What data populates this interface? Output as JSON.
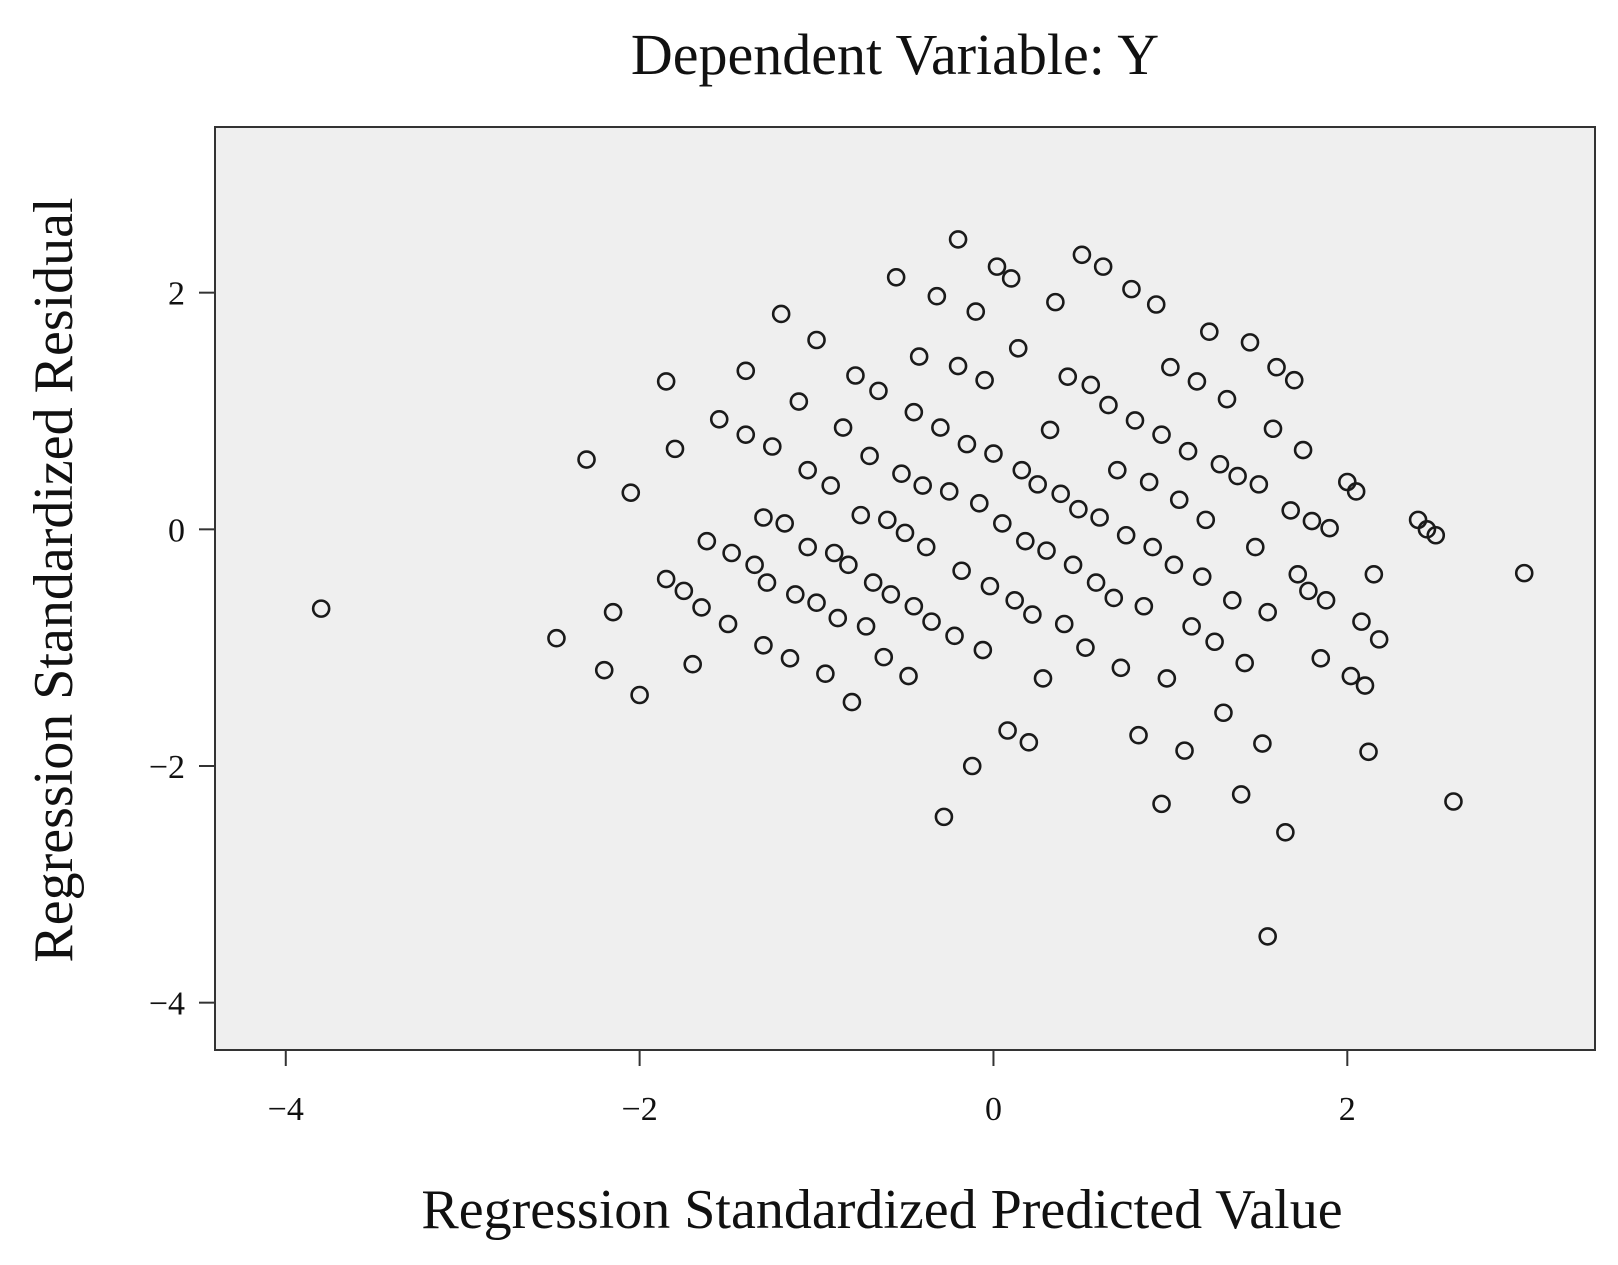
{
  "chart_data": {
    "type": "scatter",
    "title": "Dependent Variable: Y",
    "xlabel": "Regression Standardized Predicted Value",
    "ylabel": "Regression Standardized Residual",
    "xlim": [
      -4.4,
      3.4
    ],
    "ylim": [
      -4.4,
      3.4
    ],
    "xticks": [
      -4,
      -2,
      0,
      2
    ],
    "yticks": [
      2,
      0,
      -2,
      -4
    ],
    "xtick_labels": [
      "−4",
      "−2",
      "0",
      "2"
    ],
    "ytick_labels": [
      "2",
      "0",
      "−2",
      "−4"
    ],
    "grid": false,
    "legend": null,
    "colors": {
      "plot_background": "#efefef",
      "marker_stroke": "#1a1a1a",
      "frame": "#333333"
    },
    "points": [
      {
        "x": -3.8,
        "y": -0.67
      },
      {
        "x": -2.47,
        "y": -0.92
      },
      {
        "x": -2.3,
        "y": 0.59
      },
      {
        "x": -2.2,
        "y": -1.19
      },
      {
        "x": -2.15,
        "y": -0.7
      },
      {
        "x": -2.05,
        "y": 0.31
      },
      {
        "x": -2.0,
        "y": -1.4
      },
      {
        "x": -1.85,
        "y": 1.25
      },
      {
        "x": -1.85,
        "y": -0.42
      },
      {
        "x": -1.8,
        "y": 0.68
      },
      {
        "x": -1.75,
        "y": -0.52
      },
      {
        "x": -1.7,
        "y": -1.14
      },
      {
        "x": -1.65,
        "y": -0.66
      },
      {
        "x": -1.62,
        "y": -0.1
      },
      {
        "x": -1.55,
        "y": 0.93
      },
      {
        "x": -1.5,
        "y": -0.8
      },
      {
        "x": -1.48,
        "y": -0.2
      },
      {
        "x": -1.4,
        "y": 1.34
      },
      {
        "x": -1.4,
        "y": 0.8
      },
      {
        "x": -1.35,
        "y": -0.3
      },
      {
        "x": -1.3,
        "y": -0.98
      },
      {
        "x": -1.3,
        "y": 0.1
      },
      {
        "x": -1.28,
        "y": -0.45
      },
      {
        "x": -1.25,
        "y": 0.7
      },
      {
        "x": -1.2,
        "y": 1.82
      },
      {
        "x": -1.18,
        "y": 0.05
      },
      {
        "x": -1.15,
        "y": -1.09
      },
      {
        "x": -1.12,
        "y": -0.55
      },
      {
        "x": -1.1,
        "y": 1.08
      },
      {
        "x": -1.05,
        "y": 0.5
      },
      {
        "x": -1.05,
        "y": -0.15
      },
      {
        "x": -1.0,
        "y": 1.6
      },
      {
        "x": -1.0,
        "y": -0.62
      },
      {
        "x": -0.95,
        "y": -1.22
      },
      {
        "x": -0.92,
        "y": 0.37
      },
      {
        "x": -0.9,
        "y": -0.2
      },
      {
        "x": -0.88,
        "y": -0.75
      },
      {
        "x": -0.85,
        "y": 0.86
      },
      {
        "x": -0.82,
        "y": -0.3
      },
      {
        "x": -0.8,
        "y": -1.46
      },
      {
        "x": -0.78,
        "y": 1.3
      },
      {
        "x": -0.75,
        "y": 0.12
      },
      {
        "x": -0.72,
        "y": -0.82
      },
      {
        "x": -0.7,
        "y": 0.62
      },
      {
        "x": -0.68,
        "y": -0.45
      },
      {
        "x": -0.65,
        "y": 1.17
      },
      {
        "x": -0.62,
        "y": -1.08
      },
      {
        "x": -0.6,
        "y": 0.08
      },
      {
        "x": -0.58,
        "y": -0.55
      },
      {
        "x": -0.55,
        "y": 2.13
      },
      {
        "x": -0.52,
        "y": 0.47
      },
      {
        "x": -0.5,
        "y": -0.03
      },
      {
        "x": -0.48,
        "y": -1.24
      },
      {
        "x": -0.45,
        "y": -0.65
      },
      {
        "x": -0.45,
        "y": 0.99
      },
      {
        "x": -0.42,
        "y": 1.46
      },
      {
        "x": -0.4,
        "y": 0.37
      },
      {
        "x": -0.38,
        "y": -0.15
      },
      {
        "x": -0.35,
        "y": -0.78
      },
      {
        "x": -0.32,
        "y": 1.97
      },
      {
        "x": -0.3,
        "y": 0.86
      },
      {
        "x": -0.28,
        "y": -2.43
      },
      {
        "x": -0.25,
        "y": 0.32
      },
      {
        "x": -0.22,
        "y": -0.9
      },
      {
        "x": -0.2,
        "y": 2.45
      },
      {
        "x": -0.2,
        "y": 1.38
      },
      {
        "x": -0.18,
        "y": -0.35
      },
      {
        "x": -0.15,
        "y": 0.72
      },
      {
        "x": -0.12,
        "y": -2.0
      },
      {
        "x": -0.1,
        "y": 1.84
      },
      {
        "x": -0.08,
        "y": 0.22
      },
      {
        "x": -0.06,
        "y": -1.02
      },
      {
        "x": -0.05,
        "y": 1.26
      },
      {
        "x": -0.02,
        "y": -0.48
      },
      {
        "x": 0.0,
        "y": 0.64
      },
      {
        "x": 0.02,
        "y": 2.22
      },
      {
        "x": 0.05,
        "y": 0.05
      },
      {
        "x": 0.08,
        "y": -1.7
      },
      {
        "x": 0.1,
        "y": 2.12
      },
      {
        "x": 0.12,
        "y": -0.6
      },
      {
        "x": 0.14,
        "y": 1.53
      },
      {
        "x": 0.16,
        "y": 0.5
      },
      {
        "x": 0.18,
        "y": -0.1
      },
      {
        "x": 0.2,
        "y": -1.8
      },
      {
        "x": 0.22,
        "y": -0.72
      },
      {
        "x": 0.25,
        "y": 0.38
      },
      {
        "x": 0.28,
        "y": -1.26
      },
      {
        "x": 0.3,
        "y": -0.18
      },
      {
        "x": 0.32,
        "y": 0.84
      },
      {
        "x": 0.35,
        "y": 1.92
      },
      {
        "x": 0.38,
        "y": 0.3
      },
      {
        "x": 0.4,
        "y": -0.8
      },
      {
        "x": 0.42,
        "y": 1.29
      },
      {
        "x": 0.45,
        "y": -0.3
      },
      {
        "x": 0.48,
        "y": 0.17
      },
      {
        "x": 0.5,
        "y": 2.32
      },
      {
        "x": 0.52,
        "y": -1.0
      },
      {
        "x": 0.55,
        "y": 1.22
      },
      {
        "x": 0.58,
        "y": -0.45
      },
      {
        "x": 0.6,
        "y": 0.1
      },
      {
        "x": 0.62,
        "y": 2.22
      },
      {
        "x": 0.65,
        "y": 1.05
      },
      {
        "x": 0.68,
        "y": -0.58
      },
      {
        "x": 0.7,
        "y": 0.5
      },
      {
        "x": 0.72,
        "y": -1.17
      },
      {
        "x": 0.75,
        "y": -0.05
      },
      {
        "x": 0.78,
        "y": 2.03
      },
      {
        "x": 0.8,
        "y": 0.92
      },
      {
        "x": 0.82,
        "y": -1.74
      },
      {
        "x": 0.85,
        "y": -0.65
      },
      {
        "x": 0.88,
        "y": 0.4
      },
      {
        "x": 0.9,
        "y": -0.15
      },
      {
        "x": 0.92,
        "y": 1.9
      },
      {
        "x": 0.95,
        "y": -2.32
      },
      {
        "x": 0.95,
        "y": 0.8
      },
      {
        "x": 0.98,
        "y": -1.26
      },
      {
        "x": 1.0,
        "y": 1.37
      },
      {
        "x": 1.02,
        "y": -0.3
      },
      {
        "x": 1.05,
        "y": 0.25
      },
      {
        "x": 1.08,
        "y": -1.87
      },
      {
        "x": 1.1,
        "y": 0.66
      },
      {
        "x": 1.12,
        "y": -0.82
      },
      {
        "x": 1.15,
        "y": 1.25
      },
      {
        "x": 1.18,
        "y": -0.4
      },
      {
        "x": 1.2,
        "y": 0.08
      },
      {
        "x": 1.22,
        "y": 1.67
      },
      {
        "x": 1.25,
        "y": -0.95
      },
      {
        "x": 1.28,
        "y": 0.55
      },
      {
        "x": 1.3,
        "y": -1.55
      },
      {
        "x": 1.32,
        "y": 1.1
      },
      {
        "x": 1.35,
        "y": -0.6
      },
      {
        "x": 1.38,
        "y": 0.45
      },
      {
        "x": 1.4,
        "y": -2.24
      },
      {
        "x": 1.42,
        "y": -1.13
      },
      {
        "x": 1.45,
        "y": 1.58
      },
      {
        "x": 1.48,
        "y": -0.15
      },
      {
        "x": 1.5,
        "y": 0.38
      },
      {
        "x": 1.52,
        "y": -1.81
      },
      {
        "x": 1.55,
        "y": -3.44
      },
      {
        "x": 1.55,
        "y": -0.7
      },
      {
        "x": 1.58,
        "y": 0.85
      },
      {
        "x": 1.6,
        "y": 1.37
      },
      {
        "x": 1.65,
        "y": -2.56
      },
      {
        "x": 1.68,
        "y": 0.16
      },
      {
        "x": 1.7,
        "y": 1.26
      },
      {
        "x": 1.72,
        "y": -0.38
      },
      {
        "x": 1.75,
        "y": 0.67
      },
      {
        "x": 1.78,
        "y": -0.52
      },
      {
        "x": 1.8,
        "y": 0.07
      },
      {
        "x": 1.85,
        "y": -1.09
      },
      {
        "x": 1.88,
        "y": -0.6
      },
      {
        "x": 1.9,
        "y": 0.01
      },
      {
        "x": 2.0,
        "y": 0.4
      },
      {
        "x": 2.02,
        "y": -1.24
      },
      {
        "x": 2.05,
        "y": 0.32
      },
      {
        "x": 2.08,
        "y": -0.78
      },
      {
        "x": 2.1,
        "y": -1.32
      },
      {
        "x": 2.12,
        "y": -1.88
      },
      {
        "x": 2.15,
        "y": -0.38
      },
      {
        "x": 2.18,
        "y": -0.93
      },
      {
        "x": 2.4,
        "y": 0.08
      },
      {
        "x": 2.45,
        "y": 0.0
      },
      {
        "x": 2.5,
        "y": -0.05
      },
      {
        "x": 2.6,
        "y": -2.3
      },
      {
        "x": 3.0,
        "y": -0.37
      }
    ]
  }
}
